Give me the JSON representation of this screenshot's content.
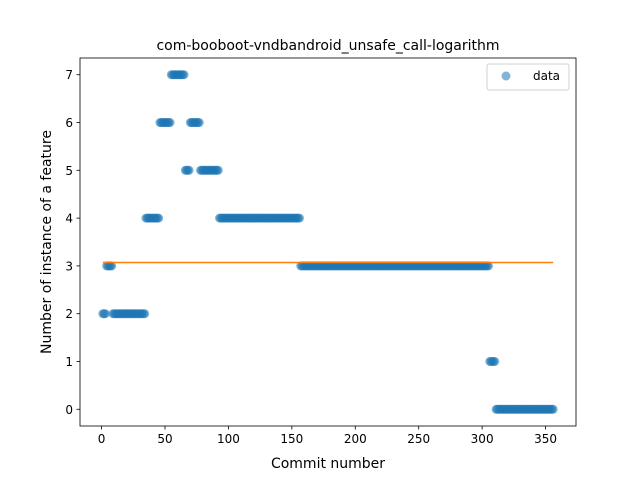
{
  "chart_data": {
    "type": "scatter",
    "title": "com-booboot-vndbandroid_unsafe_call-logarithm",
    "xlabel": "Commit number",
    "ylabel": "Number of instance of a feature",
    "xlim": [
      -17,
      374
    ],
    "ylim": [
      -0.35,
      7.35
    ],
    "x_ticks": [
      0,
      50,
      100,
      150,
      200,
      250,
      300,
      350
    ],
    "y_ticks": [
      0,
      1,
      2,
      3,
      4,
      5,
      6,
      7
    ],
    "legend": {
      "label": "data",
      "position": "top-right"
    },
    "colors": {
      "points": "#1f77b4",
      "fit_line": "#ff7f0e"
    },
    "series": [
      {
        "name": "data",
        "kind": "scatter",
        "segments": [
          {
            "x_start": 1,
            "x_end": 3,
            "y": 2
          },
          {
            "x_start": 4,
            "x_end": 8,
            "y": 3
          },
          {
            "x_start": 9,
            "x_end": 34,
            "y": 2
          },
          {
            "x_start": 35,
            "x_end": 45,
            "y": 4
          },
          {
            "x_start": 46,
            "x_end": 54,
            "y": 6
          },
          {
            "x_start": 55,
            "x_end": 65,
            "y": 7
          },
          {
            "x_start": 66,
            "x_end": 69,
            "y": 5
          },
          {
            "x_start": 70,
            "x_end": 77,
            "y": 6
          },
          {
            "x_start": 78,
            "x_end": 92,
            "y": 5
          },
          {
            "x_start": 93,
            "x_end": 156,
            "y": 4
          },
          {
            "x_start": 157,
            "x_end": 305,
            "y": 3
          },
          {
            "x_start": 306,
            "x_end": 310,
            "y": 1
          },
          {
            "x_start": 311,
            "x_end": 356,
            "y": 0
          }
        ]
      },
      {
        "name": "",
        "kind": "line",
        "x": [
          1,
          356
        ],
        "y": [
          3.07,
          3.07
        ]
      }
    ]
  }
}
